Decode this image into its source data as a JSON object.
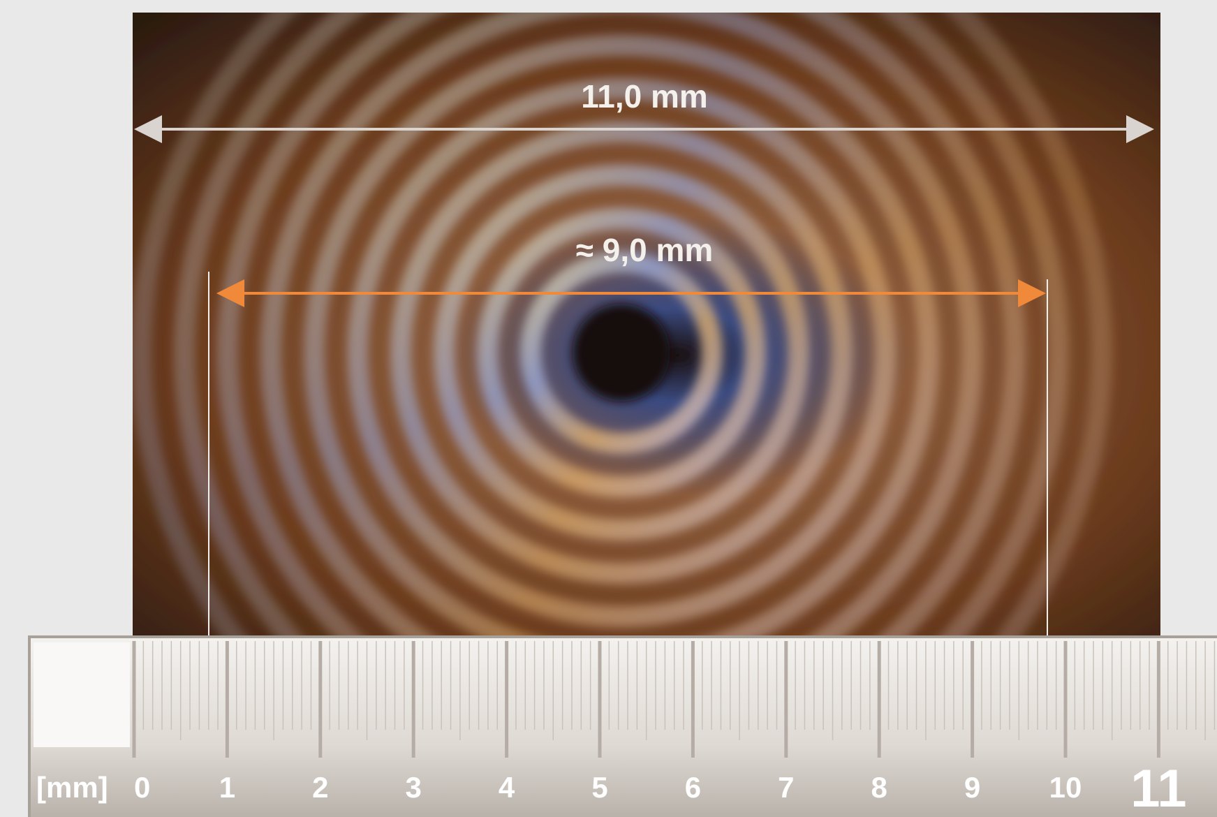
{
  "annotations": {
    "outer_width": "11,0 mm",
    "inner_width": "≈ 9,0 mm"
  },
  "ruler": {
    "unit": "[mm]",
    "labels": [
      "0",
      "1",
      "2",
      "3",
      "4",
      "5",
      "6",
      "7",
      "8",
      "9",
      "10",
      "11"
    ]
  }
}
